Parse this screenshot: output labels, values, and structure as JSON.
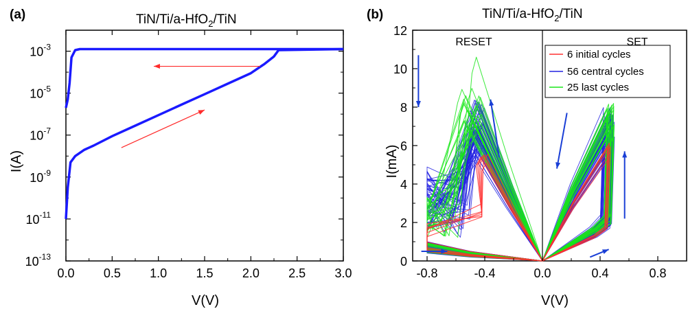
{
  "colors": {
    "axis": "#000000",
    "sweep": "#1a1aff",
    "annotation_arrow": "#ff2a2a",
    "initial": "#ff3030",
    "central": "#2020e0",
    "last": "#19e619",
    "direction_arrow": "#1a3fd6"
  },
  "chart_data": [
    {
      "panel": "(a)",
      "type": "line",
      "title": "TiN/Ti/a-HfO",
      "title_sub": "2",
      "title_suffix": "/TiN",
      "xlabel": "V(V)",
      "ylabel": "I(A)",
      "xlim": [
        0,
        3.0
      ],
      "ylim_log10": [
        -13,
        -2
      ],
      "y_scale": "log",
      "xticks": [
        "0.0",
        "0.5",
        "1.0",
        "1.5",
        "2.0",
        "2.5",
        "3.0"
      ],
      "yticks": [
        {
          "base": "10",
          "exp": "-3"
        },
        {
          "base": "10",
          "exp": "-5"
        },
        {
          "base": "10",
          "exp": "-7"
        },
        {
          "base": "10",
          "exp": "-9"
        },
        {
          "base": "10",
          "exp": "-11"
        },
        {
          "base": "10",
          "exp": "-13"
        }
      ],
      "ytick_values_log10": [
        -3,
        -5,
        -7,
        -9,
        -11,
        -13
      ],
      "series": [
        {
          "values_log10": [
            [
              0,
              -11
            ],
            [
              0.02,
              -9.5
            ],
            [
              0.05,
              -8.3
            ],
            [
              0.1,
              -8.0
            ],
            [
              0.2,
              -7.7
            ],
            [
              0.3,
              -7.5
            ],
            [
              0.5,
              -7.05
            ],
            [
              0.75,
              -6.55
            ],
            [
              1.0,
              -6.05
            ],
            [
              1.25,
              -5.55
            ],
            [
              1.5,
              -5.05
            ],
            [
              1.75,
              -4.55
            ],
            [
              2.0,
              -4.05
            ],
            [
              2.15,
              -3.6
            ],
            [
              2.25,
              -3.25
            ],
            [
              2.3,
              -2.95
            ],
            [
              3.0,
              -2.9
            ]
          ]
        },
        {
          "values_log10": [
            [
              3.0,
              -2.9
            ],
            [
              0.15,
              -2.9
            ],
            [
              0.1,
              -2.95
            ],
            [
              0.06,
              -3.3
            ],
            [
              0.04,
              -4.5
            ],
            [
              0.02,
              -5.3
            ],
            [
              0.0,
              -5.7
            ]
          ]
        }
      ],
      "arrows": [
        {
          "from": [
            2.1,
            -3.72
          ],
          "to": [
            0.95,
            -3.72
          ]
        },
        {
          "from": [
            0.6,
            -7.6
          ],
          "to": [
            1.5,
            -5.8
          ]
        }
      ]
    },
    {
      "panel": "(b)",
      "type": "line",
      "title": "TiN/Ti/a-HfO",
      "title_sub": "2",
      "title_suffix": "/TiN",
      "xlabel": "V(V)",
      "ylabel": "I(mA)",
      "xlim": [
        -0.9,
        1.0
      ],
      "ylim": [
        0,
        12
      ],
      "xticks": [
        "-0.8",
        "-0.4",
        "0.0",
        "0.4",
        "0.8"
      ],
      "xtick_values": [
        -0.8,
        -0.4,
        0.0,
        0.4,
        0.8
      ],
      "yticks": [
        "0",
        "2",
        "4",
        "6",
        "8",
        "10",
        "12"
      ],
      "ytick_values": [
        0,
        2,
        4,
        6,
        8,
        10,
        12
      ],
      "regions": [
        "RESET",
        "SET"
      ],
      "divider_x": 0.0,
      "legend": {
        "placement": "top-right"
      },
      "series": [
        {
          "name": "6 initial cycles",
          "count": 6
        },
        {
          "name": "56 central cycles",
          "count": 56
        },
        {
          "name": "25 last cycles",
          "count": 25
        }
      ],
      "arrows": [
        {
          "from": [
            -0.86,
            10.7
          ],
          "to": [
            -0.86,
            8.0
          ]
        },
        {
          "from": [
            -0.84,
            0.5
          ],
          "to": [
            -0.66,
            0.5
          ]
        },
        {
          "from": [
            -0.3,
            5.4
          ],
          "to": [
            -0.36,
            8.4
          ]
        },
        {
          "from": [
            0.17,
            7.7
          ],
          "to": [
            0.1,
            4.8
          ]
        },
        {
          "from": [
            0.33,
            0.2
          ],
          "to": [
            0.46,
            0.6
          ]
        },
        {
          "from": [
            0.57,
            2.2
          ],
          "to": [
            0.57,
            5.7
          ]
        }
      ]
    }
  ]
}
